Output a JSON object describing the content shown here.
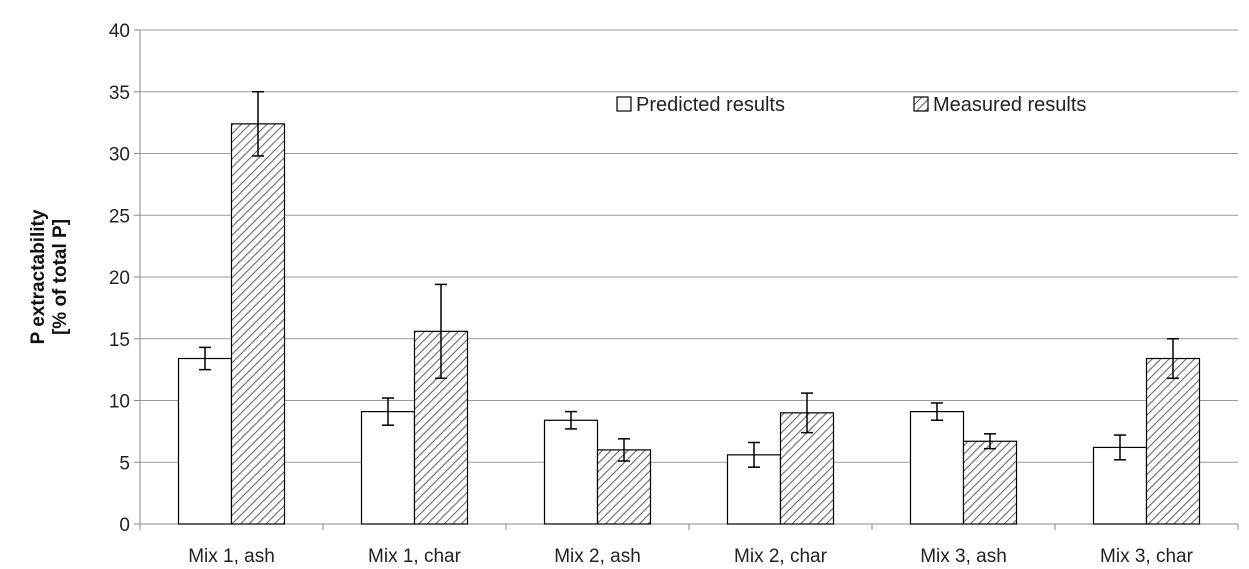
{
  "chart_data": {
    "type": "bar",
    "categories": [
      "Mix 1, ash",
      "Mix 1, char",
      "Mix 2, ash",
      "Mix 2, char",
      "Mix 3, ash",
      "Mix 3, char"
    ],
    "series": [
      {
        "name": "Predicted results",
        "values": [
          13.4,
          9.1,
          8.4,
          5.6,
          9.1,
          6.2
        ],
        "error": [
          0.9,
          1.1,
          0.7,
          1.0,
          0.7,
          1.0
        ],
        "fill": "#ffffff",
        "pattern": "none"
      },
      {
        "name": "Measured results",
        "values": [
          32.4,
          15.6,
          6.0,
          9.0,
          6.7,
          13.4
        ],
        "error": [
          2.6,
          3.8,
          0.9,
          1.6,
          0.6,
          1.6
        ],
        "fill": "#ffffff",
        "pattern": "diagonal-hatch"
      }
    ],
    "ylabel_lines": [
      "P extractability",
      "[% of total P]"
    ],
    "ylim": [
      0,
      40
    ],
    "yticks": [
      0,
      5,
      10,
      15,
      20,
      25,
      30,
      35,
      40
    ],
    "grid": true,
    "legend_position": "top-right",
    "colors": {
      "bar_stroke": "#000000",
      "grid": "#9a9a9a",
      "hatch": "#555555"
    }
  }
}
